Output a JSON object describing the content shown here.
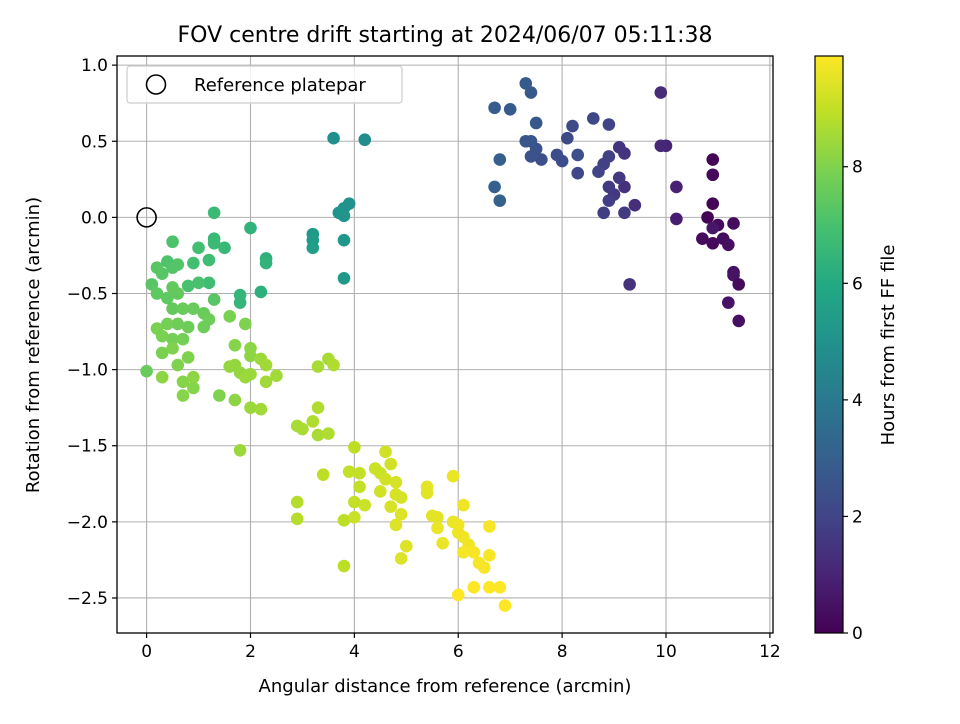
{
  "chart_data": {
    "type": "scatter",
    "title": "FOV centre drift starting at 2024/06/07 05:11:38",
    "xlabel": "Angular distance from reference (arcmin)",
    "ylabel": "Rotation from reference (arcmin)",
    "xlim": [
      -0.57,
      12.06
    ],
    "ylim": [
      -2.73,
      1.06
    ],
    "xticks": [
      0,
      2,
      4,
      6,
      8,
      10,
      12
    ],
    "yticks": [
      -2.5,
      -2.0,
      -1.5,
      -1.0,
      -0.5,
      0.0,
      0.5,
      1.0
    ],
    "xtick_labels": [
      "0",
      "2",
      "4",
      "6",
      "8",
      "10",
      "12"
    ],
    "ytick_labels": [
      "−2.5",
      "−2.0",
      "−1.5",
      "−1.0",
      "−0.5",
      "0.0",
      "0.5",
      "1.0"
    ],
    "grid": true,
    "legend": {
      "placement": "top-left",
      "entries": [
        "Reference platepar"
      ]
    },
    "reference_point": {
      "x": 0,
      "y": 0,
      "label": "Reference platepar"
    },
    "colorbar": {
      "label": "Hours from first FF file",
      "colormap": "viridis",
      "range": [
        0,
        9.9
      ],
      "ticks": [
        0,
        2,
        4,
        6,
        8
      ],
      "tick_labels": [
        "0",
        "2",
        "4",
        "6",
        "8"
      ]
    },
    "points": [
      {
        "x": 10.8,
        "y": 0.0,
        "c": 0.1
      },
      {
        "x": 10.9,
        "y": 0.38,
        "c": 0.1
      },
      {
        "x": 10.9,
        "y": 0.28,
        "c": 0.2
      },
      {
        "x": 10.9,
        "y": 0.09,
        "c": 0.1
      },
      {
        "x": 10.7,
        "y": -0.14,
        "c": 0.3
      },
      {
        "x": 10.9,
        "y": -0.17,
        "c": 0.2
      },
      {
        "x": 11.1,
        "y": -0.14,
        "c": 0.3
      },
      {
        "x": 11.0,
        "y": -0.05,
        "c": 0.2
      },
      {
        "x": 11.2,
        "y": -0.18,
        "c": 0.4
      },
      {
        "x": 11.3,
        "y": -0.04,
        "c": 0.3
      },
      {
        "x": 11.3,
        "y": -0.36,
        "c": 0.4
      },
      {
        "x": 11.3,
        "y": -0.38,
        "c": 0.5
      },
      {
        "x": 11.4,
        "y": -0.44,
        "c": 0.3
      },
      {
        "x": 11.2,
        "y": -0.56,
        "c": 0.5
      },
      {
        "x": 11.4,
        "y": -0.68,
        "c": 0.4
      },
      {
        "x": 10.9,
        "y": -0.07,
        "c": 0.6
      },
      {
        "x": 10.2,
        "y": -0.01,
        "c": 0.8
      },
      {
        "x": 10.2,
        "y": 0.2,
        "c": 0.9
      },
      {
        "x": 10.0,
        "y": 0.47,
        "c": 1.0
      },
      {
        "x": 9.9,
        "y": 0.47,
        "c": 1.1
      },
      {
        "x": 9.9,
        "y": 0.82,
        "c": 1.2
      },
      {
        "x": 9.4,
        "y": 0.08,
        "c": 1.3
      },
      {
        "x": 9.3,
        "y": -0.44,
        "c": 1.4
      },
      {
        "x": 9.2,
        "y": 0.2,
        "c": 1.4
      },
      {
        "x": 9.2,
        "y": 0.42,
        "c": 1.5
      },
      {
        "x": 9.1,
        "y": 0.46,
        "c": 1.5
      },
      {
        "x": 9.1,
        "y": 0.26,
        "c": 1.6
      },
      {
        "x": 9.0,
        "y": 0.15,
        "c": 1.6
      },
      {
        "x": 8.9,
        "y": 0.2,
        "c": 1.7
      },
      {
        "x": 9.2,
        "y": 0.03,
        "c": 1.7
      },
      {
        "x": 8.8,
        "y": 0.03,
        "c": 1.8
      },
      {
        "x": 8.9,
        "y": 0.11,
        "c": 1.8
      },
      {
        "x": 8.8,
        "y": 0.35,
        "c": 1.9
      },
      {
        "x": 8.9,
        "y": 0.4,
        "c": 1.9
      },
      {
        "x": 8.9,
        "y": 0.61,
        "c": 2.0
      },
      {
        "x": 8.7,
        "y": 0.3,
        "c": 2.0
      },
      {
        "x": 8.6,
        "y": 0.65,
        "c": 2.1
      },
      {
        "x": 8.3,
        "y": 0.29,
        "c": 2.1
      },
      {
        "x": 8.2,
        "y": 0.6,
        "c": 2.2
      },
      {
        "x": 8.1,
        "y": 0.52,
        "c": 2.2
      },
      {
        "x": 8.0,
        "y": 0.37,
        "c": 2.3
      },
      {
        "x": 7.9,
        "y": 0.41,
        "c": 2.3
      },
      {
        "x": 8.3,
        "y": 0.41,
        "c": 2.4
      },
      {
        "x": 7.6,
        "y": 0.38,
        "c": 2.4
      },
      {
        "x": 7.5,
        "y": 0.45,
        "c": 2.5
      },
      {
        "x": 7.4,
        "y": 0.4,
        "c": 2.5
      },
      {
        "x": 7.3,
        "y": 0.5,
        "c": 2.6
      },
      {
        "x": 7.4,
        "y": 0.5,
        "c": 2.6
      },
      {
        "x": 7.5,
        "y": 0.62,
        "c": 2.7
      },
      {
        "x": 7.4,
        "y": 0.82,
        "c": 2.7
      },
      {
        "x": 7.3,
        "y": 0.88,
        "c": 2.8
      },
      {
        "x": 7.0,
        "y": 0.71,
        "c": 2.8
      },
      {
        "x": 6.7,
        "y": 0.72,
        "c": 2.9
      },
      {
        "x": 6.8,
        "y": 0.38,
        "c": 3.0
      },
      {
        "x": 6.7,
        "y": 0.2,
        "c": 3.0
      },
      {
        "x": 6.8,
        "y": 0.11,
        "c": 3.1
      },
      {
        "x": 4.2,
        "y": 0.51,
        "c": 4.8
      },
      {
        "x": 3.6,
        "y": 0.52,
        "c": 4.9
      },
      {
        "x": 3.9,
        "y": 0.09,
        "c": 5.0
      },
      {
        "x": 3.8,
        "y": 0.06,
        "c": 5.0
      },
      {
        "x": 3.8,
        "y": 0.01,
        "c": 5.1
      },
      {
        "x": 3.7,
        "y": 0.03,
        "c": 5.1
      },
      {
        "x": 3.8,
        "y": -0.15,
        "c": 5.2
      },
      {
        "x": 3.8,
        "y": -0.4,
        "c": 5.3
      },
      {
        "x": 3.2,
        "y": -0.11,
        "c": 5.3
      },
      {
        "x": 3.2,
        "y": -0.15,
        "c": 5.4
      },
      {
        "x": 3.2,
        "y": -0.2,
        "c": 5.5
      },
      {
        "x": 2.2,
        "y": -0.49,
        "c": 6.3
      },
      {
        "x": 2.3,
        "y": -0.27,
        "c": 6.3
      },
      {
        "x": 2.3,
        "y": -0.3,
        "c": 6.4
      },
      {
        "x": 2.0,
        "y": -0.07,
        "c": 6.4
      },
      {
        "x": 1.8,
        "y": -0.51,
        "c": 6.5
      },
      {
        "x": 1.8,
        "y": -0.56,
        "c": 6.5
      },
      {
        "x": 1.5,
        "y": -0.2,
        "c": 6.6
      },
      {
        "x": 1.3,
        "y": -0.14,
        "c": 6.6
      },
      {
        "x": 1.3,
        "y": -0.17,
        "c": 6.7
      },
      {
        "x": 1.3,
        "y": 0.03,
        "c": 6.7
      },
      {
        "x": 1.2,
        "y": -0.28,
        "c": 6.8
      },
      {
        "x": 1.2,
        "y": -0.43,
        "c": 6.8
      },
      {
        "x": 1.0,
        "y": -0.2,
        "c": 6.9
      },
      {
        "x": 0.9,
        "y": -0.3,
        "c": 6.9
      },
      {
        "x": 1.0,
        "y": -0.43,
        "c": 7.0
      },
      {
        "x": 0.8,
        "y": -0.45,
        "c": 7.0
      },
      {
        "x": 0.5,
        "y": -0.16,
        "c": 7.1
      },
      {
        "x": 0.4,
        "y": -0.29,
        "c": 7.1
      },
      {
        "x": 0.5,
        "y": -0.33,
        "c": 7.2
      },
      {
        "x": 0.6,
        "y": -0.31,
        "c": 7.2
      },
      {
        "x": 0.2,
        "y": -0.33,
        "c": 7.3
      },
      {
        "x": 0.3,
        "y": -0.37,
        "c": 7.3
      },
      {
        "x": 0.1,
        "y": -0.44,
        "c": 7.3
      },
      {
        "x": 0.2,
        "y": -0.5,
        "c": 7.4
      },
      {
        "x": 0.4,
        "y": -0.53,
        "c": 7.4
      },
      {
        "x": 0.5,
        "y": -0.46,
        "c": 7.5
      },
      {
        "x": 0.6,
        "y": -0.5,
        "c": 7.5
      },
      {
        "x": 0.5,
        "y": -0.6,
        "c": 7.5
      },
      {
        "x": 0.7,
        "y": -0.6,
        "c": 7.6
      },
      {
        "x": 0.9,
        "y": -0.6,
        "c": 7.6
      },
      {
        "x": 1.1,
        "y": -0.63,
        "c": 7.6
      },
      {
        "x": 1.1,
        "y": -0.72,
        "c": 7.7
      },
      {
        "x": 0.6,
        "y": -0.7,
        "c": 7.7
      },
      {
        "x": 0.8,
        "y": -0.72,
        "c": 7.7
      },
      {
        "x": 0.7,
        "y": -0.8,
        "c": 7.8
      },
      {
        "x": 0.5,
        "y": -0.8,
        "c": 7.8
      },
      {
        "x": 0.4,
        "y": -0.7,
        "c": 7.8
      },
      {
        "x": 0.3,
        "y": -0.78,
        "c": 7.9
      },
      {
        "x": 0.2,
        "y": -0.73,
        "c": 7.9
      },
      {
        "x": 0.3,
        "y": -0.89,
        "c": 7.9
      },
      {
        "x": 0.5,
        "y": -0.86,
        "c": 8.0
      },
      {
        "x": 0.6,
        "y": -0.97,
        "c": 8.0
      },
      {
        "x": 0.8,
        "y": -0.92,
        "c": 8.0
      },
      {
        "x": 0.7,
        "y": -1.08,
        "c": 8.1
      },
      {
        "x": 0.9,
        "y": -1.12,
        "c": 8.1
      },
      {
        "x": 0.7,
        "y": -1.17,
        "c": 8.1
      },
      {
        "x": 0.9,
        "y": -1.05,
        "c": 8.2
      },
      {
        "x": 0.3,
        "y": -1.05,
        "c": 8.2
      },
      {
        "x": 0.0,
        "y": -1.01,
        "c": 7.6
      },
      {
        "x": 1.3,
        "y": -0.54,
        "c": 7.3
      },
      {
        "x": 1.2,
        "y": -0.67,
        "c": 7.7
      },
      {
        "x": 1.6,
        "y": -0.65,
        "c": 7.9
      },
      {
        "x": 1.9,
        "y": -0.7,
        "c": 8.0
      },
      {
        "x": 1.7,
        "y": -0.84,
        "c": 8.1
      },
      {
        "x": 2.0,
        "y": -0.86,
        "c": 8.2
      },
      {
        "x": 2.0,
        "y": -0.91,
        "c": 8.2
      },
      {
        "x": 1.7,
        "y": -0.97,
        "c": 8.3
      },
      {
        "x": 1.6,
        "y": -0.98,
        "c": 8.3
      },
      {
        "x": 1.8,
        "y": -1.02,
        "c": 8.3
      },
      {
        "x": 1.9,
        "y": -1.05,
        "c": 8.4
      },
      {
        "x": 2.0,
        "y": -1.03,
        "c": 8.4
      },
      {
        "x": 2.2,
        "y": -0.93,
        "c": 8.4
      },
      {
        "x": 2.3,
        "y": -0.97,
        "c": 8.5
      },
      {
        "x": 2.5,
        "y": -1.04,
        "c": 8.5
      },
      {
        "x": 2.3,
        "y": -1.08,
        "c": 8.5
      },
      {
        "x": 1.4,
        "y": -1.17,
        "c": 8.0
      },
      {
        "x": 1.7,
        "y": -1.2,
        "c": 8.2
      },
      {
        "x": 2.0,
        "y": -1.25,
        "c": 8.4
      },
      {
        "x": 2.2,
        "y": -1.26,
        "c": 8.5
      },
      {
        "x": 1.8,
        "y": -1.53,
        "c": 8.4
      },
      {
        "x": 2.9,
        "y": -1.37,
        "c": 8.6
      },
      {
        "x": 3.0,
        "y": -1.39,
        "c": 8.6
      },
      {
        "x": 3.3,
        "y": -1.43,
        "c": 8.6
      },
      {
        "x": 3.2,
        "y": -1.34,
        "c": 8.7
      },
      {
        "x": 3.3,
        "y": -1.25,
        "c": 8.7
      },
      {
        "x": 3.5,
        "y": -1.42,
        "c": 8.7
      },
      {
        "x": 3.3,
        "y": -0.98,
        "c": 8.6
      },
      {
        "x": 3.5,
        "y": -0.93,
        "c": 8.6
      },
      {
        "x": 3.6,
        "y": -0.97,
        "c": 8.7
      },
      {
        "x": 2.9,
        "y": -1.87,
        "c": 8.8
      },
      {
        "x": 2.9,
        "y": -1.98,
        "c": 8.8
      },
      {
        "x": 3.4,
        "y": -1.69,
        "c": 8.9
      },
      {
        "x": 3.8,
        "y": -2.29,
        "c": 8.9
      },
      {
        "x": 3.8,
        "y": -1.99,
        "c": 8.9
      },
      {
        "x": 4.0,
        "y": -1.51,
        "c": 8.9
      },
      {
        "x": 3.9,
        "y": -1.67,
        "c": 9.0
      },
      {
        "x": 4.1,
        "y": -1.68,
        "c": 9.0
      },
      {
        "x": 4.1,
        "y": -1.77,
        "c": 9.0
      },
      {
        "x": 4.0,
        "y": -1.87,
        "c": 9.0
      },
      {
        "x": 4.2,
        "y": -1.89,
        "c": 9.1
      },
      {
        "x": 4.0,
        "y": -1.97,
        "c": 9.1
      },
      {
        "x": 4.4,
        "y": -1.65,
        "c": 9.1
      },
      {
        "x": 4.5,
        "y": -1.68,
        "c": 9.1
      },
      {
        "x": 4.6,
        "y": -1.54,
        "c": 9.2
      },
      {
        "x": 4.7,
        "y": -1.62,
        "c": 9.2
      },
      {
        "x": 4.6,
        "y": -1.72,
        "c": 9.2
      },
      {
        "x": 4.5,
        "y": -1.8,
        "c": 9.2
      },
      {
        "x": 4.8,
        "y": -1.74,
        "c": 9.3
      },
      {
        "x": 4.8,
        "y": -1.82,
        "c": 9.3
      },
      {
        "x": 4.9,
        "y": -1.84,
        "c": 9.3
      },
      {
        "x": 4.7,
        "y": -1.9,
        "c": 9.3
      },
      {
        "x": 4.9,
        "y": -1.95,
        "c": 9.4
      },
      {
        "x": 4.8,
        "y": -2.02,
        "c": 9.4
      },
      {
        "x": 5.0,
        "y": -2.16,
        "c": 9.4
      },
      {
        "x": 4.9,
        "y": -2.24,
        "c": 9.4
      },
      {
        "x": 5.4,
        "y": -1.77,
        "c": 9.5
      },
      {
        "x": 5.4,
        "y": -1.81,
        "c": 9.5
      },
      {
        "x": 5.5,
        "y": -1.96,
        "c": 9.5
      },
      {
        "x": 5.6,
        "y": -1.97,
        "c": 9.5
      },
      {
        "x": 5.6,
        "y": -2.04,
        "c": 9.6
      },
      {
        "x": 5.7,
        "y": -2.14,
        "c": 9.6
      },
      {
        "x": 5.9,
        "y": -1.7,
        "c": 9.6
      },
      {
        "x": 5.9,
        "y": -2.0,
        "c": 9.6
      },
      {
        "x": 6.0,
        "y": -2.02,
        "c": 9.7
      },
      {
        "x": 6.0,
        "y": -2.07,
        "c": 9.7
      },
      {
        "x": 6.1,
        "y": -1.89,
        "c": 9.7
      },
      {
        "x": 6.1,
        "y": -2.1,
        "c": 9.7
      },
      {
        "x": 6.2,
        "y": -2.15,
        "c": 9.7
      },
      {
        "x": 6.1,
        "y": -2.2,
        "c": 9.8
      },
      {
        "x": 6.3,
        "y": -2.2,
        "c": 9.8
      },
      {
        "x": 6.4,
        "y": -2.27,
        "c": 9.8
      },
      {
        "x": 6.5,
        "y": -2.3,
        "c": 9.8
      },
      {
        "x": 6.6,
        "y": -2.22,
        "c": 9.8
      },
      {
        "x": 6.6,
        "y": -2.03,
        "c": 9.8
      },
      {
        "x": 6.3,
        "y": -2.43,
        "c": 9.9
      },
      {
        "x": 6.6,
        "y": -2.43,
        "c": 9.9
      },
      {
        "x": 6.8,
        "y": -2.43,
        "c": 9.9
      },
      {
        "x": 6.0,
        "y": -2.48,
        "c": 9.9
      },
      {
        "x": 6.9,
        "y": -2.55,
        "c": 9.9
      }
    ]
  }
}
